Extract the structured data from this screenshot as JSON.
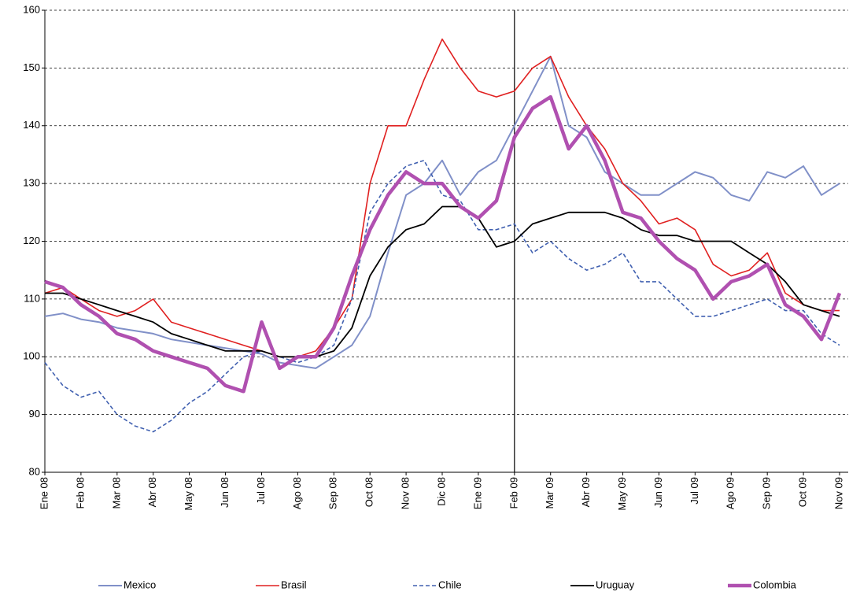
{
  "chart_data": {
    "type": "line",
    "categories": [
      "Ene 08",
      null,
      "Feb 08",
      null,
      "Mar 08",
      null,
      "Abr 08",
      null,
      "May 08",
      null,
      "Jun 08",
      null,
      "Jul 08",
      null,
      "Ago 08",
      null,
      "Sep 08",
      null,
      "Oct 08",
      null,
      "Nov 08",
      null,
      "Dic 08",
      null,
      "Ene 09",
      null,
      "Feb 09",
      null,
      "Mar 09",
      null,
      "Abr 09",
      null,
      "May 09",
      null,
      "Jun 09",
      null,
      "Jul 09",
      null,
      "Ago 09",
      null,
      "Sep 09",
      null,
      "Oct 09",
      null,
      "Nov 09"
    ],
    "series": [
      {
        "name": "Mexico",
        "color": "#8090c8",
        "width": 2,
        "dash": false,
        "values": [
          107,
          107.5,
          106.5,
          106,
          105,
          104.5,
          104,
          103,
          102.5,
          102,
          101.5,
          101,
          100.5,
          99,
          98.5,
          98,
          100,
          102,
          107,
          118,
          128,
          130,
          134,
          128,
          132,
          134,
          140,
          146,
          152,
          140,
          138,
          132,
          130,
          128,
          128,
          130,
          132,
          131,
          128,
          127,
          132,
          131,
          133,
          128,
          130
        ]
      },
      {
        "name": "Brasil",
        "color": "#e02020",
        "width": 1.6,
        "dash": false,
        "values": [
          111,
          112,
          110,
          108,
          107,
          108,
          110,
          106,
          105,
          104,
          103,
          102,
          101,
          100,
          100,
          101,
          105,
          110,
          130,
          140,
          140,
          148,
          155,
          150,
          146,
          145,
          146,
          150,
          152,
          145,
          140,
          136,
          130,
          127,
          123,
          124,
          122,
          116,
          114,
          115,
          118,
          111,
          109,
          108,
          108
        ]
      },
      {
        "name": "Chile",
        "color": "#4060b0",
        "width": 1.6,
        "dash": true,
        "values": [
          99,
          95,
          93,
          94,
          90,
          88,
          87,
          89,
          92,
          94,
          97,
          100,
          101,
          100,
          99,
          100,
          102,
          110,
          125,
          130,
          133,
          134,
          128,
          127,
          122,
          122,
          123,
          118,
          120,
          117,
          115,
          116,
          118,
          113,
          113,
          110,
          107,
          107,
          108,
          109,
          110,
          108,
          108,
          104,
          102
        ]
      },
      {
        "name": "Uruguay",
        "color": "#000000",
        "width": 1.8,
        "dash": false,
        "values": [
          111,
          111,
          110,
          109,
          108,
          107,
          106,
          104,
          103,
          102,
          101,
          101,
          101,
          100,
          100,
          100,
          101,
          105,
          114,
          119,
          122,
          123,
          126,
          126,
          124,
          119,
          120,
          123,
          124,
          125,
          125,
          125,
          124,
          122,
          121,
          121,
          120,
          120,
          120,
          118,
          116,
          113,
          109,
          108,
          107
        ]
      },
      {
        "name": "Colombia",
        "color": "#b050b0",
        "width": 4.5,
        "dash": false,
        "values": [
          113,
          112,
          109,
          107,
          104,
          103,
          101,
          100,
          99,
          98,
          95,
          94,
          106,
          98,
          100,
          100,
          105,
          114,
          122,
          128,
          132,
          130,
          130,
          126,
          124,
          127,
          138,
          143,
          145,
          136,
          140,
          134,
          125,
          124,
          120,
          117,
          115,
          110,
          113,
          114,
          116,
          109,
          107,
          103,
          111
        ]
      }
    ],
    "ylim": [
      80,
      160
    ],
    "yticks": [
      80,
      90,
      100,
      110,
      120,
      130,
      140,
      150,
      160
    ],
    "grid": true,
    "vline_x": 26,
    "legend": "bottom"
  }
}
